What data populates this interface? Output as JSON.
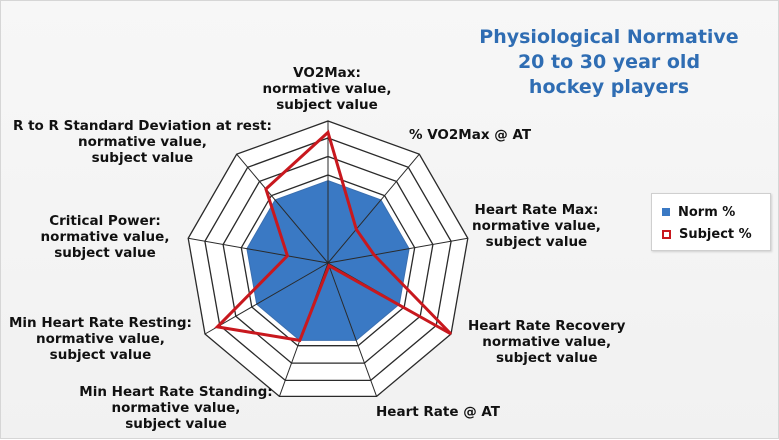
{
  "title": {
    "lines": [
      "Physiological Normative",
      "20 to 30 year old",
      "hockey players"
    ]
  },
  "legend": {
    "norm_label": "Norm %",
    "subject_label": "Subject %"
  },
  "chart_data": {
    "type": "radar",
    "axes": [
      {
        "label": [
          "VO2Max:",
          "normative value,",
          "subject value"
        ]
      },
      {
        "label": [
          "% VO2Max @ AT"
        ]
      },
      {
        "label": [
          "Heart Rate Max:",
          "normative value,",
          "subject value"
        ]
      },
      {
        "label": [
          "Heart Rate Recovery",
          "normative value,",
          "subject value"
        ]
      },
      {
        "label": [
          "Heart Rate @ AT"
        ]
      },
      {
        "label": [
          "Min Heart Rate Standing:",
          "normative value,",
          "subject value"
        ]
      },
      {
        "label": [
          "Min Heart Rate Resting:",
          "normative value,",
          "subject value"
        ]
      },
      {
        "label": [
          "Critical Power:",
          "normative value,",
          "subject value"
        ]
      },
      {
        "label": [
          "R to R Standard Deviation at rest:",
          "normative value,",
          "subject value"
        ]
      }
    ],
    "series": [
      {
        "name": "Norm %",
        "color": "#3a79c4",
        "fill": true,
        "values": [
          0.58,
          0.58,
          0.58,
          0.58,
          0.58,
          0.58,
          0.58,
          0.58,
          0.58
        ]
      },
      {
        "name": "Subject %",
        "color": "#c8181e",
        "fill": false,
        "values": [
          0.92,
          0.31,
          0.33,
          1.0,
          0.02,
          0.58,
          0.9,
          0.29,
          0.68
        ]
      }
    ],
    "rings": 5,
    "ylim": [
      0,
      1
    ],
    "grid": true,
    "legend_position": "right"
  }
}
